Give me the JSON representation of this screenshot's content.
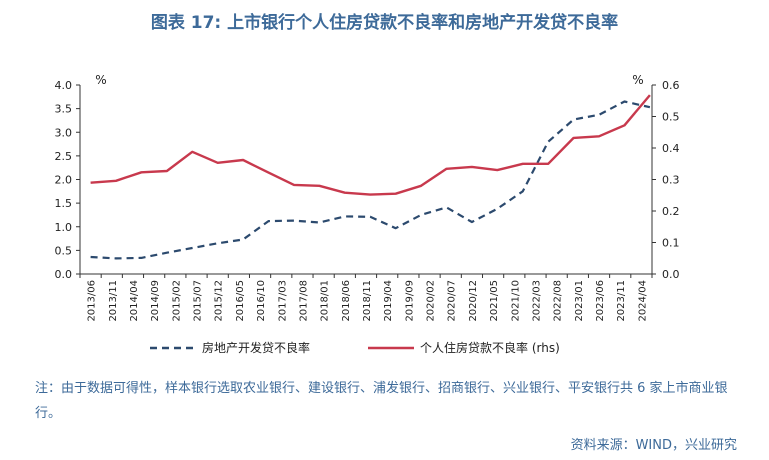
{
  "header": {
    "title": "图表 17: 上市银行个人住房贷款不良率和房地产开发贷不良率"
  },
  "footer": {
    "note": "注：由于数据可得性，样本银行选取农业银行、建设银行、浦发银行、招商银行、兴业银行、平安银行共 6 家上市商业银行。",
    "source": "资料来源：WIND，兴业研究"
  },
  "chart_data": {
    "type": "line",
    "title": "图表 17: 上市银行个人住房贷款不良率和房地产开发贷不良率",
    "y_left": {
      "unit": "%",
      "ylim": [
        0,
        4.0
      ],
      "ticks": [
        "0.0",
        "0.5",
        "1.0",
        "1.5",
        "2.0",
        "2.5",
        "3.0",
        "3.5",
        "4.0"
      ]
    },
    "y_right": {
      "unit": "%",
      "ylim": [
        0,
        0.6
      ],
      "ticks": [
        "0.0",
        "0.1",
        "0.2",
        "0.3",
        "0.4",
        "0.5",
        "0.6"
      ]
    },
    "categories": [
      "2013/06",
      "2013/11",
      "2014/04",
      "2014/09",
      "2015/02",
      "2015/07",
      "2015/12",
      "2016/05",
      "2016/10",
      "2017/03",
      "2017/08",
      "2018/01",
      "2018/06",
      "2018/11",
      "2019/04",
      "2019/09",
      "2020/02",
      "2020/07",
      "2020/12",
      "2021/05",
      "2021/10",
      "2022/03",
      "2022/08",
      "2023/01",
      "2023/06",
      "2023/11",
      "2024/04"
    ],
    "series": [
      {
        "name": "房地产开发贷不良率",
        "axis": "left",
        "style": "dashed",
        "color": "#2c4a6e",
        "x": [
          "2013/06",
          "2013/12",
          "2014/06",
          "2014/12",
          "2015/06",
          "2015/12",
          "2016/06",
          "2016/12",
          "2017/06",
          "2017/12",
          "2018/06",
          "2018/12",
          "2019/06",
          "2019/12",
          "2020/06",
          "2020/12",
          "2021/06",
          "2021/12",
          "2022/06",
          "2022/12",
          "2023/06",
          "2023/12",
          "2024/06"
        ],
        "values": [
          0.36,
          0.33,
          0.34,
          0.45,
          0.55,
          0.65,
          0.73,
          1.12,
          1.13,
          1.09,
          1.22,
          1.21,
          0.97,
          1.25,
          1.41,
          1.1,
          1.38,
          1.75,
          2.8,
          3.27,
          3.37,
          3.65,
          3.53
        ]
      },
      {
        "name": "个人住房贷款不良率 (rhs)",
        "axis": "right",
        "style": "solid",
        "color": "#c8394d",
        "x": [
          "2013/06",
          "2013/12",
          "2014/06",
          "2014/12",
          "2015/06",
          "2015/12",
          "2016/06",
          "2016/12",
          "2017/06",
          "2017/12",
          "2018/06",
          "2018/12",
          "2019/06",
          "2019/12",
          "2020/06",
          "2020/12",
          "2021/06",
          "2021/12",
          "2022/06",
          "2022/12",
          "2023/06",
          "2023/12",
          "2024/06"
        ],
        "values": [
          0.29,
          0.296,
          0.323,
          0.327,
          0.388,
          0.353,
          0.362,
          0.322,
          0.283,
          0.28,
          0.258,
          0.252,
          0.255,
          0.28,
          0.334,
          0.34,
          0.33,
          0.35,
          0.35,
          0.432,
          0.437,
          0.472,
          0.568
        ]
      }
    ],
    "legend_position": "bottom",
    "grid": false
  }
}
